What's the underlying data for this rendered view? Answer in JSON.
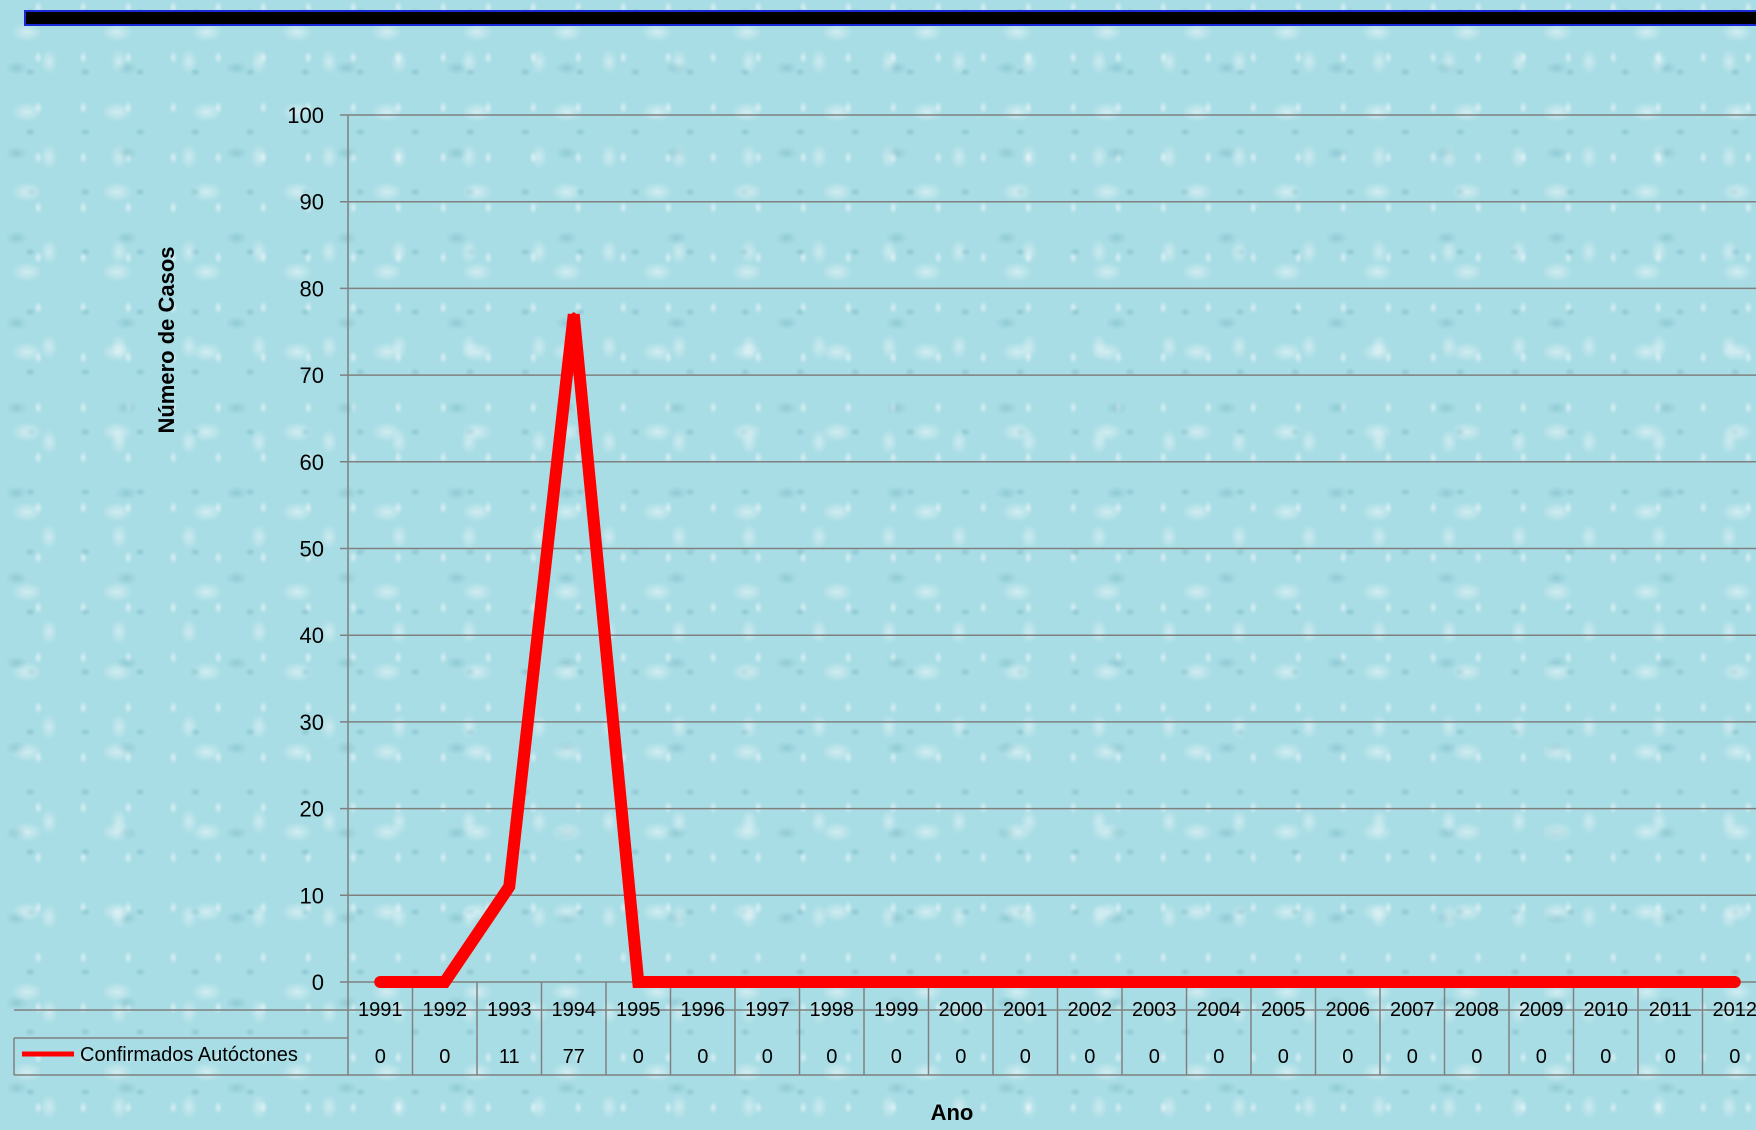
{
  "chart_data": {
    "type": "line",
    "title": "",
    "xlabel": "Ano",
    "ylabel": "Número de Casos",
    "ylim": [
      0,
      100
    ],
    "yticks": [
      0,
      10,
      20,
      30,
      40,
      50,
      60,
      70,
      80,
      90,
      100
    ],
    "grid": true,
    "legend": "data-table-left",
    "categories": [
      "1991",
      "1992",
      "1993",
      "1994",
      "1995",
      "1996",
      "1997",
      "1998",
      "1999",
      "2000",
      "2001",
      "2002",
      "2003",
      "2004",
      "2005",
      "2006",
      "2007",
      "2008",
      "2009",
      "2010",
      "2011",
      "2012"
    ],
    "series": [
      {
        "name": "Confirmados Autóctones",
        "color": "#ff0000",
        "values": [
          0,
          0,
          11,
          77,
          0,
          0,
          0,
          0,
          0,
          0,
          0,
          0,
          0,
          0,
          0,
          0,
          0,
          0,
          0,
          0,
          0,
          0
        ]
      }
    ]
  },
  "colors": {
    "background": "#a9dde5",
    "top_bar": "#000000",
    "gridline": "#808080",
    "series_line": "#ff0000"
  }
}
